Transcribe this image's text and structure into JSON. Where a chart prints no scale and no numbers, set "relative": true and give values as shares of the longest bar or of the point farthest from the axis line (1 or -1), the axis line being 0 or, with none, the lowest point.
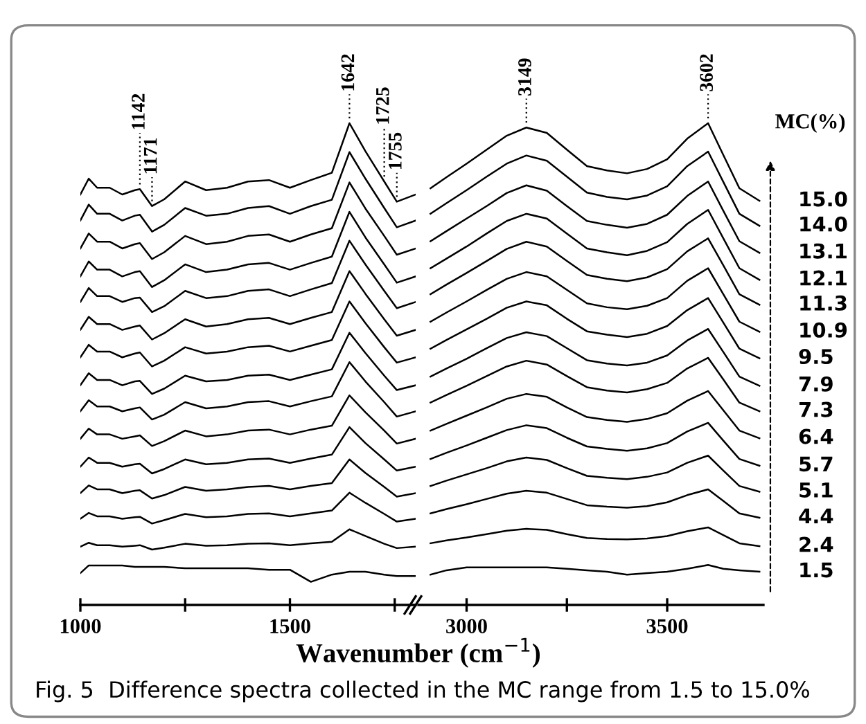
{
  "chart_data": [
    {
      "type": "line",
      "relative": true,
      "xlabel": "Wavenumber (cm$^{−1}$)",
      "xlim": [
        1000,
        1800
      ],
      "xticks": [
        1000,
        {
          "value": 1250,
          "label": null
        },
        1500,
        {
          "value": 1750,
          "label": null
        }
      ],
      "x": [
        1000,
        1020,
        1040,
        1070,
        1100,
        1130,
        1142,
        1171,
        1200,
        1250,
        1300,
        1350,
        1400,
        1450,
        1500,
        1550,
        1600,
        1642,
        1680,
        1725,
        1755,
        1800
      ],
      "annotations": [
        {
          "text": "1142",
          "x": 1142,
          "y": 0.863
        },
        {
          "text": "1171",
          "x": 1171,
          "y": 0.828
        },
        {
          "text": "1642",
          "x": 1642,
          "y": 1.0
        },
        {
          "text": "1725",
          "x": 1725,
          "y": 0.879
        },
        {
          "text": "1755",
          "x": 1755,
          "y": 0.837
        }
      ],
      "series": [
        {
          "color": "#000000",
          "values": [
            0.852,
            0.885,
            0.866,
            0.866,
            0.852,
            0.861,
            0.863,
            0.828,
            0.842,
            0.879,
            0.861,
            0.866,
            0.879,
            0.882,
            0.866,
            0.882,
            0.897,
            1.0,
            0.942,
            0.879,
            0.837,
            0.852
          ]
        },
        {
          "color": "#000000",
          "values": [
            0.798,
            0.831,
            0.812,
            0.812,
            0.798,
            0.808,
            0.81,
            0.775,
            0.789,
            0.824,
            0.808,
            0.812,
            0.824,
            0.828,
            0.812,
            0.828,
            0.841,
            0.94,
            0.885,
            0.824,
            0.784,
            0.798
          ]
        },
        {
          "color": "#000000",
          "values": [
            0.74,
            0.771,
            0.754,
            0.754,
            0.74,
            0.749,
            0.751,
            0.718,
            0.732,
            0.766,
            0.749,
            0.754,
            0.766,
            0.769,
            0.754,
            0.769,
            0.782,
            0.877,
            0.823,
            0.766,
            0.727,
            0.74
          ]
        },
        {
          "color": "#000000",
          "values": [
            0.682,
            0.713,
            0.696,
            0.696,
            0.682,
            0.691,
            0.693,
            0.66,
            0.674,
            0.707,
            0.691,
            0.696,
            0.707,
            0.71,
            0.696,
            0.71,
            0.723,
            0.816,
            0.763,
            0.707,
            0.669,
            0.682
          ]
        },
        {
          "color": "#000000",
          "values": [
            0.629,
            0.658,
            0.641,
            0.641,
            0.629,
            0.637,
            0.638,
            0.608,
            0.62,
            0.652,
            0.637,
            0.641,
            0.652,
            0.655,
            0.641,
            0.655,
            0.668,
            0.756,
            0.707,
            0.652,
            0.616,
            0.629
          ]
        },
        {
          "color": "#000000",
          "values": [
            0.571,
            0.598,
            0.583,
            0.583,
            0.571,
            0.578,
            0.58,
            0.551,
            0.564,
            0.593,
            0.578,
            0.583,
            0.593,
            0.596,
            0.583,
            0.596,
            0.608,
            0.693,
            0.646,
            0.593,
            0.559,
            0.571
          ]
        },
        {
          "color": "#000000",
          "values": [
            0.514,
            0.54,
            0.526,
            0.526,
            0.514,
            0.522,
            0.524,
            0.495,
            0.507,
            0.535,
            0.522,
            0.526,
            0.535,
            0.538,
            0.526,
            0.538,
            0.55,
            0.63,
            0.585,
            0.535,
            0.503,
            0.514
          ]
        },
        {
          "color": "#000000",
          "values": [
            0.456,
            0.481,
            0.467,
            0.467,
            0.456,
            0.464,
            0.465,
            0.438,
            0.449,
            0.476,
            0.464,
            0.467,
            0.476,
            0.478,
            0.467,
            0.478,
            0.489,
            0.565,
            0.523,
            0.476,
            0.446,
            0.456
          ]
        },
        {
          "color": "#000000",
          "values": [
            0.402,
            0.425,
            0.412,
            0.412,
            0.402,
            0.408,
            0.41,
            0.385,
            0.395,
            0.421,
            0.408,
            0.412,
            0.421,
            0.423,
            0.412,
            0.423,
            0.433,
            0.504,
            0.464,
            0.421,
            0.391,
            0.402
          ]
        },
        {
          "color": "#000000",
          "values": [
            0.345,
            0.366,
            0.354,
            0.354,
            0.345,
            0.35,
            0.352,
            0.33,
            0.34,
            0.362,
            0.35,
            0.354,
            0.362,
            0.364,
            0.354,
            0.364,
            0.372,
            0.435,
            0.4,
            0.362,
            0.335,
            0.345
          ]
        },
        {
          "color": "#000000",
          "values": [
            0.287,
            0.306,
            0.295,
            0.295,
            0.287,
            0.292,
            0.293,
            0.273,
            0.282,
            0.302,
            0.292,
            0.295,
            0.302,
            0.304,
            0.295,
            0.304,
            0.312,
            0.369,
            0.336,
            0.302,
            0.279,
            0.287
          ]
        },
        {
          "color": "#000000",
          "values": [
            0.232,
            0.248,
            0.24,
            0.24,
            0.232,
            0.237,
            0.238,
            0.221,
            0.228,
            0.245,
            0.237,
            0.24,
            0.245,
            0.247,
            0.24,
            0.247,
            0.253,
            0.302,
            0.274,
            0.245,
            0.225,
            0.232
          ]
        },
        {
          "color": "#000000",
          "values": [
            0.179,
            0.191,
            0.184,
            0.184,
            0.179,
            0.182,
            0.183,
            0.169,
            0.176,
            0.189,
            0.182,
            0.184,
            0.189,
            0.19,
            0.184,
            0.19,
            0.196,
            0.233,
            0.212,
            0.189,
            0.173,
            0.179
          ]
        },
        {
          "color": "#000000",
          "values": [
            0.121,
            0.129,
            0.124,
            0.124,
            0.121,
            0.123,
            0.124,
            0.115,
            0.119,
            0.127,
            0.123,
            0.124,
            0.127,
            0.128,
            0.124,
            0.128,
            0.131,
            0.157,
            0.143,
            0.127,
            0.118,
            0.121
          ]
        },
        {
          "color": "#000000",
          "values": [
            0.066,
            0.082,
            0.082,
            0.082,
            0.082,
            0.079,
            0.079,
            0.079,
            0.079,
            0.076,
            0.076,
            0.076,
            0.076,
            0.073,
            0.073,
            0.048,
            0.063,
            0.069,
            0.069,
            0.063,
            0.06,
            0.06
          ]
        }
      ]
    },
    {
      "type": "line",
      "relative": true,
      "legend_title": "MC(%)",
      "xlim": [
        2880,
        3740
      ],
      "xticks": [
        3000,
        {
          "value": 3250,
          "label": null
        },
        3500
      ],
      "x": [
        2910,
        2950,
        3000,
        3050,
        3100,
        3149,
        3200,
        3250,
        3300,
        3350,
        3400,
        3450,
        3500,
        3550,
        3602,
        3640,
        3680,
        3730
      ],
      "annotations": [
        {
          "text": "3149",
          "x": 3149,
          "y": 0.991
        },
        {
          "text": "3602",
          "x": 3602,
          "y": 1.0
        },
        "Fig. 5  Difference spectra collected in the MC range from 1.5 to 15.0%"
      ],
      "series": [
        {
          "name": "15.0",
          "color": "#000000",
          "values": [
            0.865,
            0.888,
            0.916,
            0.945,
            0.974,
            0.991,
            0.98,
            0.945,
            0.911,
            0.902,
            0.896,
            0.905,
            0.925,
            0.968,
            1.0,
            0.934,
            0.865,
            0.839
          ]
        },
        {
          "name": "14.0",
          "color": "#000000",
          "values": [
            0.812,
            0.834,
            0.861,
            0.889,
            0.916,
            0.933,
            0.922,
            0.889,
            0.856,
            0.847,
            0.842,
            0.85,
            0.869,
            0.911,
            0.941,
            0.878,
            0.812,
            0.787
          ]
        },
        {
          "name": "13.1",
          "color": "#000000",
          "values": [
            0.755,
            0.776,
            0.802,
            0.828,
            0.855,
            0.871,
            0.86,
            0.828,
            0.797,
            0.789,
            0.783,
            0.791,
            0.81,
            0.849,
            0.879,
            0.818,
            0.755,
            0.731
          ]
        },
        {
          "name": "12.1",
          "color": "#000000",
          "values": [
            0.699,
            0.719,
            0.744,
            0.771,
            0.797,
            0.812,
            0.802,
            0.771,
            0.74,
            0.732,
            0.726,
            0.735,
            0.753,
            0.791,
            0.82,
            0.761,
            0.699,
            0.675
          ]
        },
        {
          "name": "11.3",
          "color": "#000000",
          "values": [
            0.645,
            0.665,
            0.689,
            0.714,
            0.739,
            0.754,
            0.744,
            0.714,
            0.685,
            0.677,
            0.672,
            0.68,
            0.697,
            0.734,
            0.761,
            0.705,
            0.645,
            0.623
          ]
        },
        {
          "name": "10.9",
          "color": "#000000",
          "values": [
            0.588,
            0.607,
            0.63,
            0.654,
            0.677,
            0.691,
            0.682,
            0.654,
            0.626,
            0.618,
            0.614,
            0.621,
            0.637,
            0.673,
            0.699,
            0.645,
            0.588,
            0.567
          ]
        },
        {
          "name": "9.5",
          "color": "#000000",
          "values": [
            0.532,
            0.55,
            0.572,
            0.594,
            0.617,
            0.63,
            0.622,
            0.594,
            0.568,
            0.561,
            0.556,
            0.563,
            0.579,
            0.612,
            0.637,
            0.586,
            0.532,
            0.512
          ]
        },
        {
          "name": "7.9",
          "color": "#000000",
          "values": [
            0.474,
            0.491,
            0.511,
            0.533,
            0.554,
            0.566,
            0.558,
            0.533,
            0.508,
            0.501,
            0.497,
            0.503,
            0.518,
            0.549,
            0.573,
            0.525,
            0.474,
            0.455
          ]
        },
        {
          "name": "7.3",
          "color": "#000000",
          "values": [
            0.42,
            0.436,
            0.455,
            0.475,
            0.495,
            0.507,
            0.499,
            0.475,
            0.452,
            0.445,
            0.441,
            0.448,
            0.461,
            0.491,
            0.513,
            0.468,
            0.42,
            0.402
          ]
        },
        {
          "name": "6.4",
          "color": "#000000",
          "values": [
            0.362,
            0.376,
            0.393,
            0.41,
            0.428,
            0.438,
            0.432,
            0.41,
            0.39,
            0.384,
            0.38,
            0.386,
            0.398,
            0.424,
            0.444,
            0.404,
            0.362,
            0.346
          ]
        },
        {
          "name": "5.7",
          "color": "#000000",
          "values": [
            0.303,
            0.316,
            0.331,
            0.347,
            0.363,
            0.373,
            0.367,
            0.347,
            0.329,
            0.324,
            0.32,
            0.325,
            0.336,
            0.36,
            0.378,
            0.341,
            0.303,
            0.289
          ]
        },
        {
          "name": "5.1",
          "color": "#000000",
          "values": [
            0.247,
            0.258,
            0.271,
            0.284,
            0.298,
            0.306,
            0.301,
            0.284,
            0.268,
            0.264,
            0.261,
            0.266,
            0.275,
            0.295,
            0.31,
            0.279,
            0.247,
            0.235
          ]
        },
        {
          "name": "4.4",
          "color": "#000000",
          "values": [
            0.19,
            0.199,
            0.209,
            0.22,
            0.231,
            0.237,
            0.233,
            0.22,
            0.207,
            0.204,
            0.202,
            0.205,
            0.213,
            0.228,
            0.24,
            0.216,
            0.19,
            0.181
          ]
        },
        {
          "name": "2.4",
          "color": "#000000",
          "values": [
            0.128,
            0.134,
            0.14,
            0.147,
            0.154,
            0.158,
            0.156,
            0.147,
            0.139,
            0.137,
            0.136,
            0.138,
            0.143,
            0.153,
            0.161,
            0.145,
            0.128,
            0.122
          ]
        },
        {
          "name": "1.5",
          "color": "#000000",
          "values": [
            0.063,
            0.072,
            0.078,
            0.078,
            0.078,
            0.078,
            0.078,
            0.075,
            0.072,
            0.069,
            0.063,
            0.066,
            0.069,
            0.075,
            0.083,
            0.075,
            0.072,
            0.069
          ]
        }
      ]
    }
  ]
}
